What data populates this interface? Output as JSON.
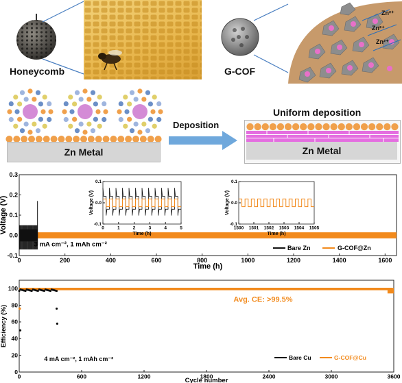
{
  "top": {
    "honeycomb_label": "Honeycomb",
    "gcof_label": "G-COF",
    "ion_labels": [
      "Zn²⁺",
      "Zn²⁺",
      "Zn²⁺"
    ]
  },
  "middle": {
    "zn_metal_left": "Zn Metal",
    "arrow_label": "Deposition",
    "uniform_label": "Uniform deposition",
    "zn_metal_right": "Zn Metal"
  },
  "colors": {
    "bare": "#111111",
    "gcof": "#f28a1c",
    "arrow": "#6fa8dc",
    "particle": "#f0a04b",
    "zn_ion": "#d48bd6",
    "layer_pink": "#e46ee0"
  },
  "chart_data": [
    {
      "type": "line",
      "ylabel": "Voltage (V)",
      "xlabel": "Time (h)",
      "xlim": [
        0,
        1650
      ],
      "ylim": [
        -0.1,
        0.3
      ],
      "x_ticks": [
        "0",
        "200",
        "400",
        "600",
        "800",
        "1000",
        "1200",
        "1400",
        "1600"
      ],
      "y_ticks": [
        "-0.1",
        "0.0",
        "0.1",
        "0.2",
        "0.3"
      ],
      "annotation": "3 mA cm⁻², 1 mAh cm⁻²",
      "series": [
        {
          "name": "Bare Zn",
          "x_range": [
            0,
            80
          ],
          "amplitude": 0.03,
          "end_spike": 0.17
        },
        {
          "name": "G-COF@Zn",
          "x_range": [
            0,
            1650
          ],
          "amplitude": 0.015
        }
      ],
      "insets": [
        {
          "xlabel": "Time (h)",
          "ylabel": "Voltage (V)",
          "xlim": [
            0,
            5
          ],
          "ylim": [
            -0.1,
            0.1
          ],
          "x_ticks": [
            "0",
            "1",
            "2",
            "3",
            "4",
            "5"
          ],
          "y_ticks": [
            "-0.1",
            "0.0",
            "0.1"
          ]
        },
        {
          "xlabel": "Time (h)",
          "ylabel": "Voltage (V)",
          "xlim": [
            1500,
            1505
          ],
          "ylim": [
            -0.1,
            0.1
          ],
          "x_ticks": [
            "1500",
            "1501",
            "1502",
            "1503",
            "1504",
            "1505"
          ],
          "y_ticks": [
            "-0.1",
            "0.0",
            "0.1"
          ]
        }
      ]
    },
    {
      "type": "scatter",
      "ylabel": "Efficiency (%)",
      "xlabel": "Cycle number",
      "xlim": [
        0,
        3600
      ],
      "ylim": [
        0,
        110
      ],
      "x_ticks": [
        "0",
        "600",
        "1200",
        "1800",
        "2400",
        "3000",
        "3600"
      ],
      "y_ticks": [
        "0",
        "20",
        "40",
        "60",
        "80",
        "100"
      ],
      "annotation": "4 mA cm⁻², 1 mAh cm⁻²",
      "avg_ce": "Avg. CE: >99.5%",
      "series": [
        {
          "name": "Bare Cu",
          "x_range": [
            0,
            370
          ],
          "values": 98,
          "outliers": [
            [
              360,
              76
            ],
            [
              365,
              58
            ],
            [
              10,
              50
            ]
          ]
        },
        {
          "name": "G-COF@Cu",
          "x_range": [
            0,
            3590
          ],
          "values": 99.5
        }
      ]
    }
  ]
}
